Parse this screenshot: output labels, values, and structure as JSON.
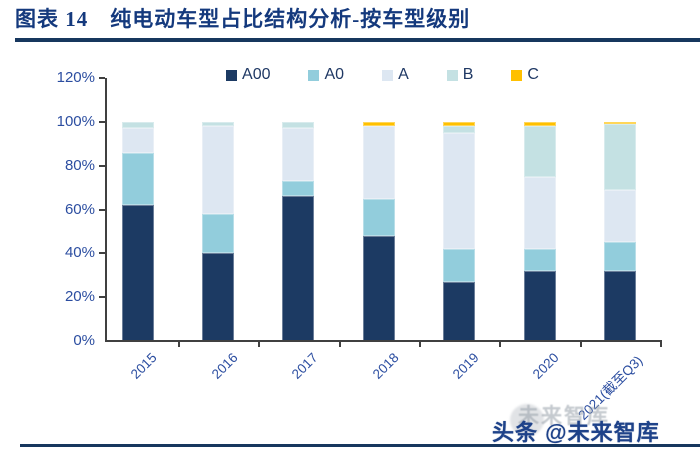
{
  "title": "图表 14　纯电动车型占比结构分析-按车型级别",
  "chart_data": {
    "type": "bar",
    "stacked": true,
    "title": "纯电动车型占比结构分析-按车型级别",
    "categories": [
      "2015",
      "2016",
      "2017",
      "2018",
      "2019",
      "2020",
      "2021(截至Q3)"
    ],
    "series": [
      {
        "name": "A00",
        "color": "#1C3A63",
        "values": [
          62,
          40,
          66,
          48,
          27,
          32,
          32
        ]
      },
      {
        "name": "A0",
        "color": "#92CDDC",
        "values": [
          24,
          18,
          7,
          17,
          15,
          10,
          13
        ]
      },
      {
        "name": "A",
        "color": "#DDE7F2",
        "values": [
          11,
          40,
          24,
          33,
          53,
          33,
          24
        ]
      },
      {
        "name": "B",
        "color": "#C4E1E3",
        "values": [
          3,
          2,
          3,
          0,
          3,
          23,
          30
        ]
      },
      {
        "name": "C",
        "color": "#FFC000",
        "values": [
          0,
          0,
          0,
          2,
          2,
          2,
          1
        ]
      }
    ],
    "xlabel": "",
    "ylabel": "",
    "ylim": [
      0,
      120
    ],
    "yticks": [
      "0%",
      "20%",
      "40%",
      "60%",
      "80%",
      "100%",
      "120%"
    ],
    "grid": false,
    "legend_position": "top"
  },
  "watermark": {
    "ghost_text": "未来智库",
    "label": "头条 @未来智库"
  },
  "colors": {
    "title_text": "#14397D",
    "title_rule": "#17375E",
    "axis_label": "#2B4DA0",
    "axis_line": "#404040",
    "bottom_rule": "#17375E",
    "accent_yellow": "#FFC000"
  }
}
